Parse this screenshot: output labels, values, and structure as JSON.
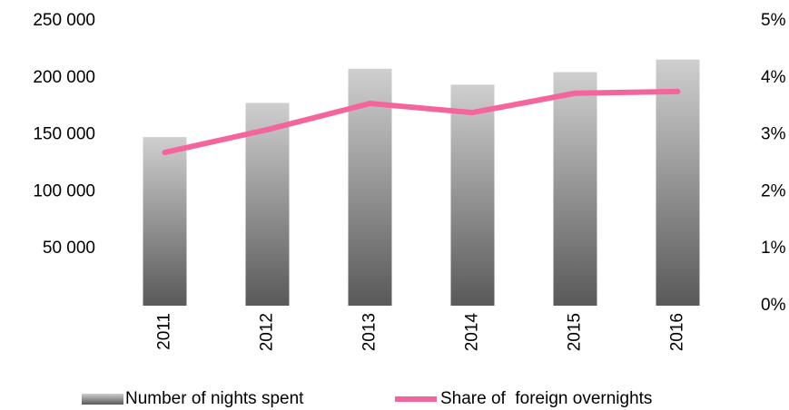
{
  "chart_data": {
    "type": "bar",
    "categories": [
      "2011",
      "2012",
      "2013",
      "2014",
      "2015",
      "2016"
    ],
    "series": [
      {
        "name": "Number of nights spent",
        "type": "bar",
        "color": "#595959",
        "values": [
          148000,
          178000,
          208000,
          194000,
          205000,
          216000
        ]
      },
      {
        "name": "Share of  foreign overnights",
        "type": "line",
        "axis": "y2",
        "color": "#f4659e",
        "values": [
          2.69,
          3.09,
          3.55,
          3.39,
          3.73,
          3.76
        ]
      }
    ],
    "ylim": [
      0,
      250000
    ],
    "yticks": [
      {
        "value": 50000,
        "label": "50 000"
      },
      {
        "value": 100000,
        "label": "100 000"
      },
      {
        "value": 150000,
        "label": "150 000"
      },
      {
        "value": 200000,
        "label": "200 000"
      },
      {
        "value": 250000,
        "label": "250 000"
      }
    ],
    "y2lim": [
      0,
      5
    ],
    "y2ticks": [
      {
        "value": 0,
        "label": "0%"
      },
      {
        "value": 1,
        "label": "1%"
      },
      {
        "value": 2,
        "label": "2%"
      },
      {
        "value": 3,
        "label": "3%"
      },
      {
        "value": 4,
        "label": "4%"
      },
      {
        "value": 5,
        "label": "5%"
      }
    ],
    "grid": false
  }
}
